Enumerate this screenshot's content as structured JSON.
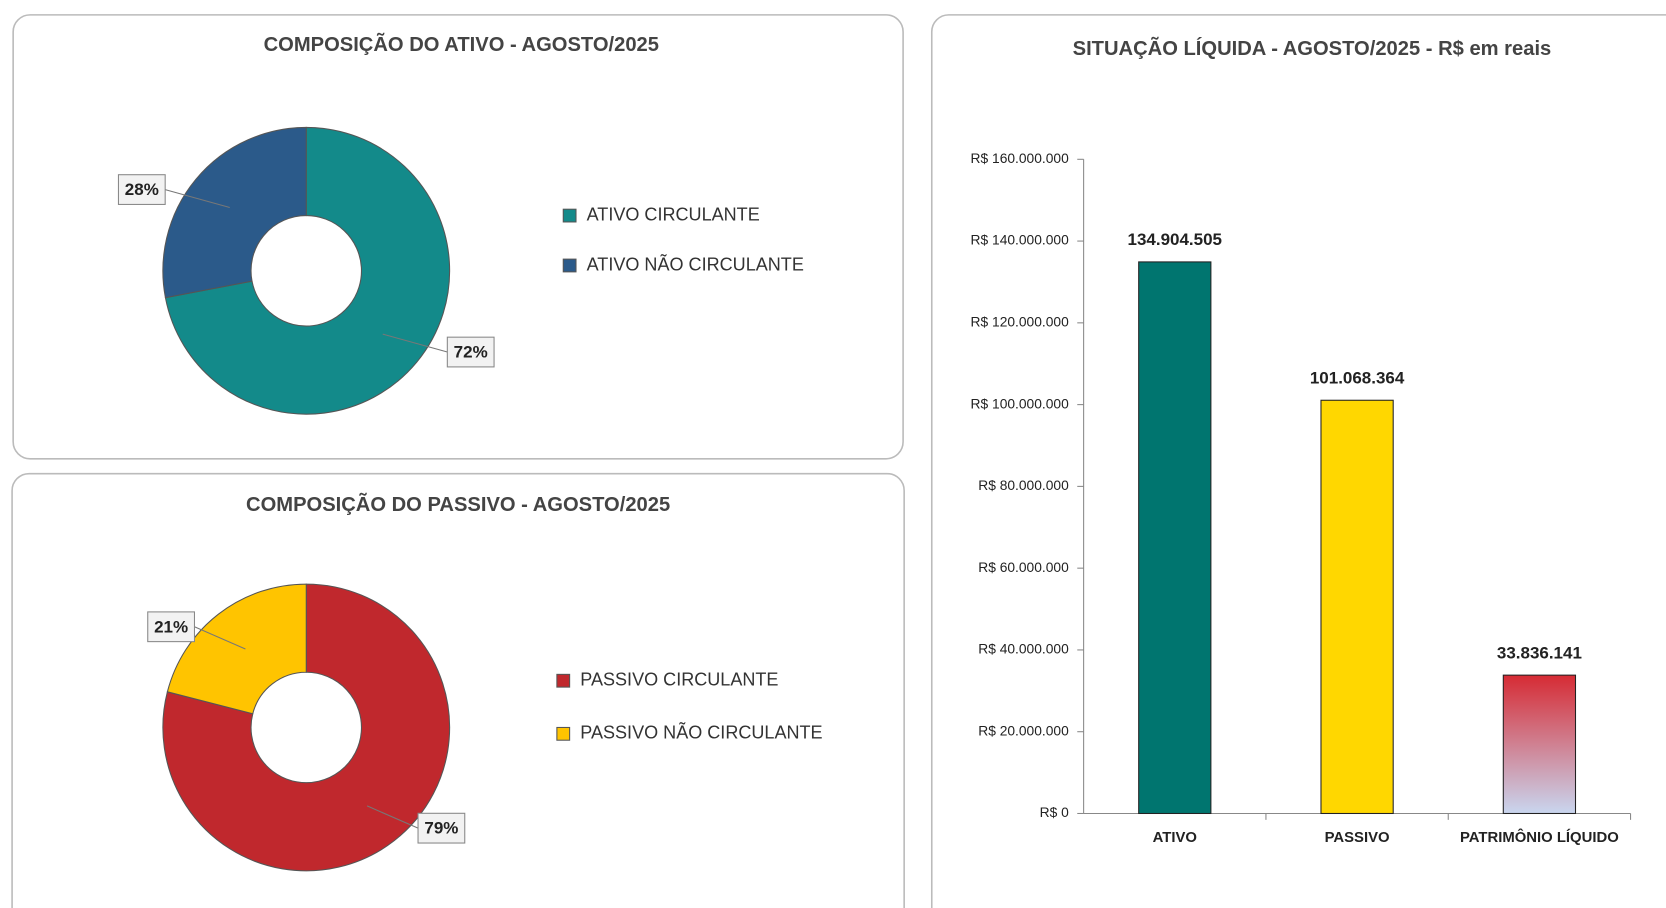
{
  "chart_data": [
    {
      "type": "doughnut",
      "title": "COMPOSIÇÃO DO ATIVO - AGOSTO/2025",
      "categories": [
        "ATIVO CIRCULANTE",
        "ATIVO NÃO CIRCULANTE"
      ],
      "values": [
        72,
        28
      ],
      "value_labels": [
        "72%",
        "28%"
      ],
      "colors": [
        "#138a8a",
        "#2b5a8a"
      ]
    },
    {
      "type": "doughnut",
      "title": "COMPOSIÇÃO DO PASSIVO - AGOSTO/2025",
      "categories": [
        "PASSIVO CIRCULANTE",
        "PASSIVO NÃO CIRCULANTE"
      ],
      "values": [
        79,
        21
      ],
      "value_labels": [
        "79%",
        "21%"
      ],
      "colors": [
        "#c0282d",
        "#ffc400"
      ]
    },
    {
      "type": "bar",
      "title": "SITUAÇÃO LÍQUIDA - AGOSTO/2025 - R$ em reais",
      "categories": [
        "ATIVO",
        "PASSIVO",
        "PATRIMÔNIO LÍQUIDO"
      ],
      "values": [
        134904505,
        101068364,
        33836141
      ],
      "value_labels": [
        "134.904.505",
        "101.068.364",
        "33.836.141"
      ],
      "colors": [
        "#00756f",
        "#ffd700",
        "#d62b34"
      ],
      "ylim": [
        0,
        160000000
      ],
      "yticks": [
        {
          "value": 0,
          "label": "R$ 0"
        },
        {
          "value": 20000000,
          "label": "R$ 20.000.000"
        },
        {
          "value": 40000000,
          "label": "R$ 40.000.000"
        },
        {
          "value": 60000000,
          "label": "R$ 60.000.000"
        },
        {
          "value": 80000000,
          "label": "R$ 80.000.000"
        },
        {
          "value": 100000000,
          "label": "R$ 100.000.000"
        },
        {
          "value": 120000000,
          "label": "R$ 120.000.000"
        },
        {
          "value": 140000000,
          "label": "R$ 140.000.000"
        },
        {
          "value": 160000000,
          "label": "R$ 160.000.000"
        }
      ]
    }
  ]
}
